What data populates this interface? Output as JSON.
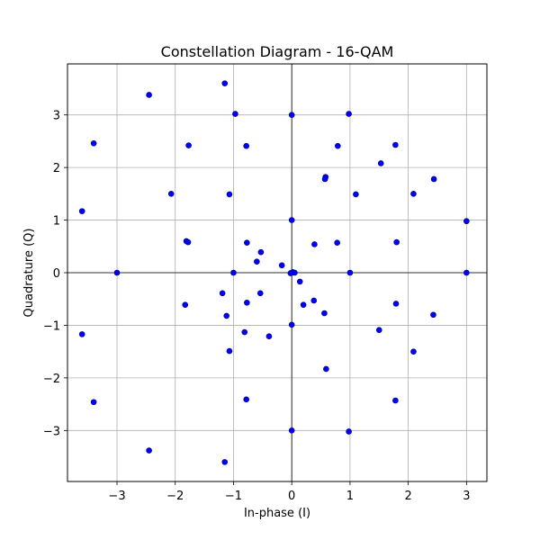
{
  "chart_data": {
    "type": "scatter",
    "title": "Constellation Diagram - 16-QAM",
    "xlabel": "In-phase (I)",
    "ylabel": "Quadrature (Q)",
    "xlim": [
      -3.85,
      3.35
    ],
    "ylim": [
      -3.97,
      3.97
    ],
    "xticks": [
      -3,
      -2,
      -1,
      0,
      1,
      2,
      3
    ],
    "yticks": [
      -3,
      -2,
      -1,
      0,
      1,
      2,
      3
    ],
    "xtick_labels": [
      "−3",
      "−2",
      "−1",
      "0",
      "1",
      "2",
      "3"
    ],
    "ytick_labels": [
      "−3",
      "−2",
      "−1",
      "0",
      "1",
      "2",
      "3"
    ],
    "grid": true,
    "zero_lines": true,
    "marker_color": "#0000ff",
    "marker_edge_color": "#000080",
    "series": [
      {
        "points": [
          [
            -2.45,
            3.38
          ],
          [
            -1.15,
            3.6
          ],
          [
            -0.97,
            3.02
          ],
          [
            0.0,
            3.0
          ],
          [
            0.98,
            3.02
          ],
          [
            -3.4,
            2.46
          ],
          [
            -1.77,
            2.42
          ],
          [
            -0.78,
            2.41
          ],
          [
            0.79,
            2.41
          ],
          [
            1.78,
            2.43
          ],
          [
            1.53,
            2.08
          ],
          [
            0.58,
            1.82
          ],
          [
            0.57,
            1.78
          ],
          [
            2.44,
            1.78
          ],
          [
            -2.07,
            1.5
          ],
          [
            -1.07,
            1.49
          ],
          [
            1.1,
            1.49
          ],
          [
            2.09,
            1.5
          ],
          [
            -3.6,
            1.17
          ],
          [
            0.0,
            1.0
          ],
          [
            3.0,
            0.98
          ],
          [
            -1.81,
            0.6
          ],
          [
            -1.78,
            0.58
          ],
          [
            -0.77,
            0.57
          ],
          [
            0.39,
            0.54
          ],
          [
            0.78,
            0.57
          ],
          [
            1.8,
            0.58
          ],
          [
            -0.53,
            0.39
          ],
          [
            -0.6,
            0.21
          ],
          [
            -0.17,
            0.14
          ],
          [
            -3.0,
            0.0
          ],
          [
            -1.0,
            0.0
          ],
          [
            0.0,
            0.0
          ],
          [
            0.02,
            0.01
          ],
          [
            0.05,
            0.0
          ],
          [
            -0.02,
            -0.01
          ],
          [
            1.0,
            0.0
          ],
          [
            3.0,
            0.0
          ],
          [
            0.14,
            -0.17
          ],
          [
            -1.19,
            -0.39
          ],
          [
            -0.54,
            -0.39
          ],
          [
            -0.77,
            -0.57
          ],
          [
            0.38,
            -0.53
          ],
          [
            0.2,
            -0.61
          ],
          [
            1.79,
            -0.59
          ],
          [
            -1.83,
            -0.61
          ],
          [
            -1.12,
            -0.82
          ],
          [
            0.56,
            -0.77
          ],
          [
            2.43,
            -0.8
          ],
          [
            0.0,
            -0.99
          ],
          [
            -0.81,
            -1.13
          ],
          [
            -0.39,
            -1.21
          ],
          [
            1.5,
            -1.09
          ],
          [
            -3.6,
            -1.17
          ],
          [
            -1.07,
            -1.49
          ],
          [
            2.09,
            -1.5
          ],
          [
            0.59,
            -1.83
          ],
          [
            -0.78,
            -2.41
          ],
          [
            1.78,
            -2.43
          ],
          [
            -3.4,
            -2.46
          ],
          [
            0.0,
            -3.0
          ],
          [
            0.98,
            -3.02
          ],
          [
            -2.45,
            -3.38
          ],
          [
            -1.15,
            -3.6
          ]
        ]
      }
    ]
  }
}
